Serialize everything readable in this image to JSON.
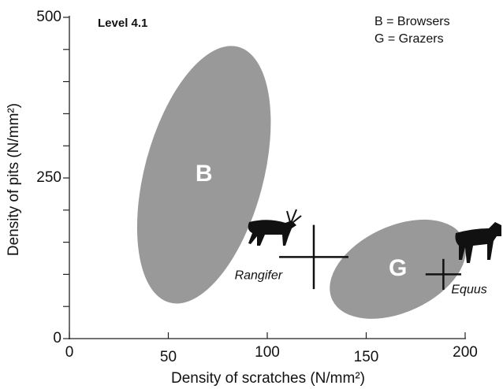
{
  "chart_data": {
    "type": "ellipse-scatter",
    "title": "Level 4.1",
    "legend": [
      "B = Browsers",
      "G = Grazers"
    ],
    "x_label": "Density of scratches (N/mm²)",
    "y_label": "Density of pits (N/mm²)",
    "xlim": [
      0,
      200
    ],
    "ylim": [
      0,
      500
    ],
    "xticks": [
      0,
      50,
      100,
      150,
      200
    ],
    "yticks": [
      0,
      250,
      500
    ],
    "yminorticks": [
      50,
      100,
      150,
      200,
      300,
      350,
      400,
      450
    ],
    "ellipses": [
      {
        "name": "B",
        "color": "#999999",
        "center_x": 68,
        "center_y": 255,
        "rx": 30,
        "ry": 206,
        "angle": 15
      },
      {
        "name": "G",
        "color": "#999999",
        "center_x": 166,
        "center_y": 108,
        "rx": 36.6,
        "ry": 67,
        "angle": -25
      }
    ],
    "points": [
      {
        "name": "Rangifer",
        "x": 123.5,
        "y": 127,
        "x_err": 17.5,
        "y_err": 50
      },
      {
        "name": "Equus",
        "x": 189,
        "y": 100,
        "x_err": 9,
        "y_err": 24
      }
    ]
  }
}
